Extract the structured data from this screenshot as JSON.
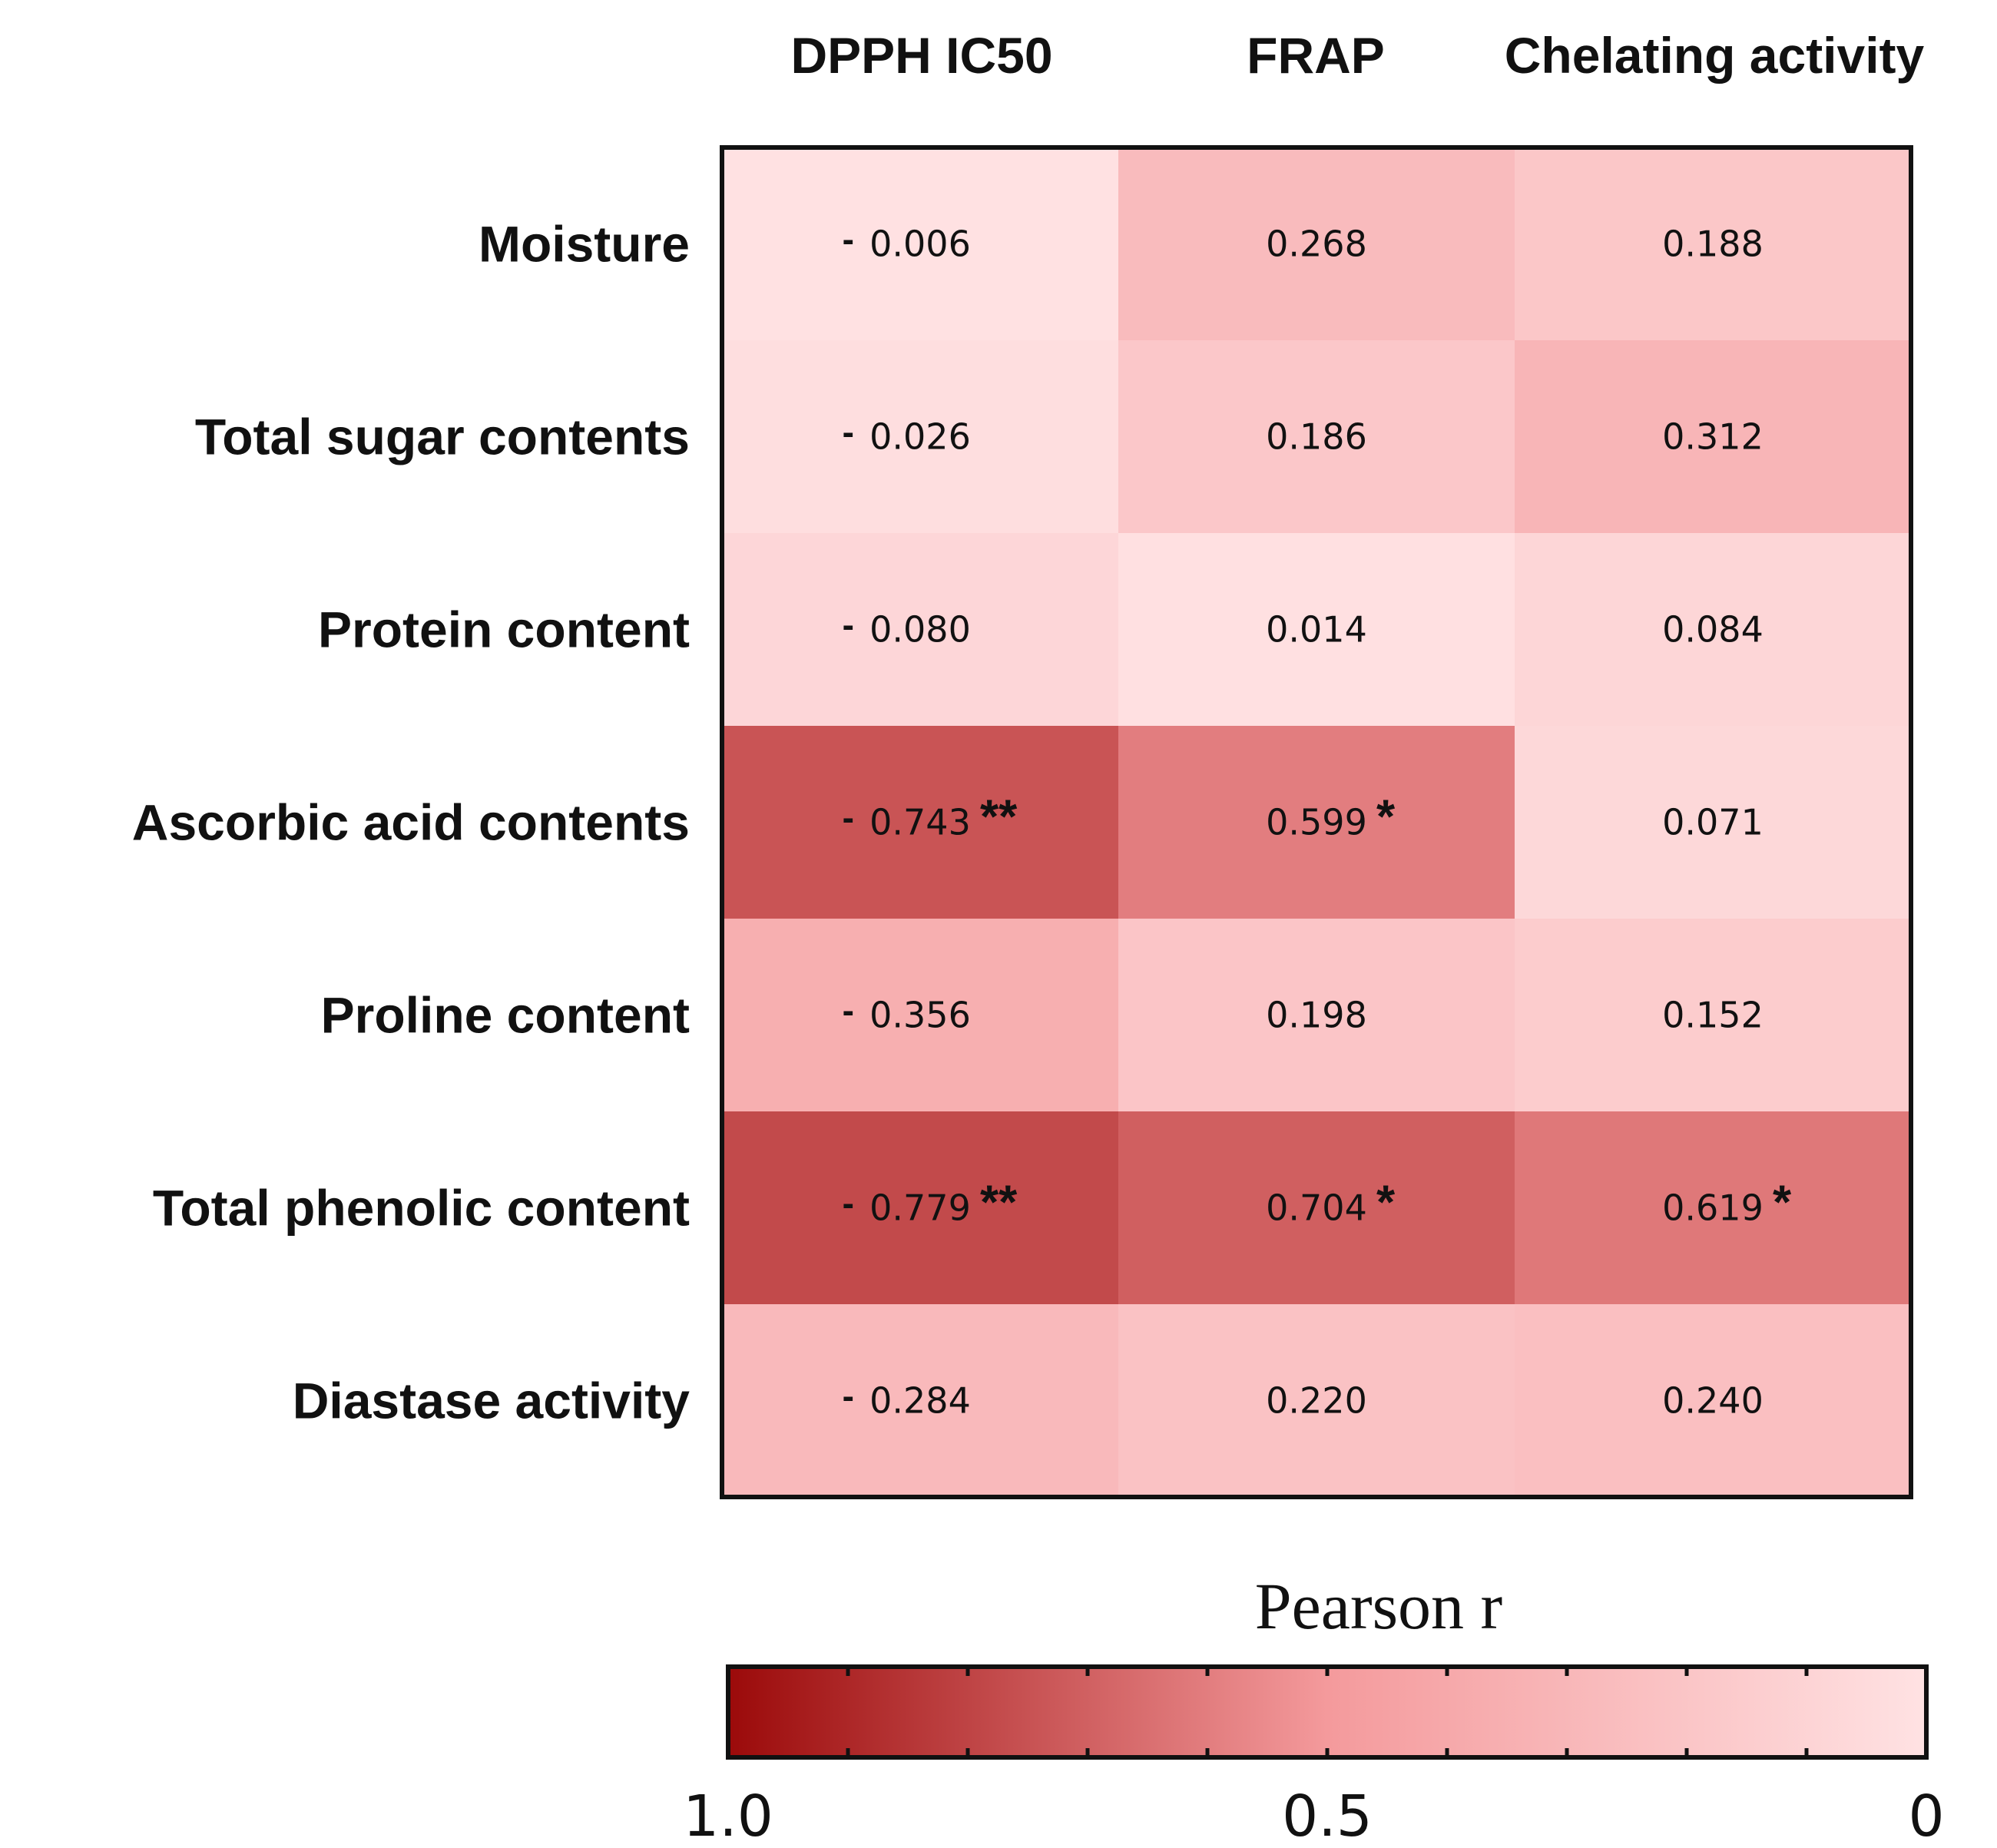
{
  "chart_data": {
    "type": "heatmap",
    "title": "",
    "columns": [
      "DPPH IC50",
      "FRAP",
      "Chelating activity"
    ],
    "rows": [
      "Moisture",
      "Total sugar contents",
      "Protein content",
      "Ascorbic acid contents",
      "Proline content",
      "Total phenolic content",
      "Diastase activity"
    ],
    "values": [
      [
        -0.006,
        0.268,
        0.188
      ],
      [
        -0.026,
        0.186,
        0.312
      ],
      [
        -0.08,
        0.014,
        0.084
      ],
      [
        -0.743,
        0.599,
        0.071
      ],
      [
        -0.356,
        0.198,
        0.152
      ],
      [
        -0.779,
        0.704,
        0.619
      ],
      [
        -0.284,
        0.22,
        0.24
      ]
    ],
    "cell_labels": [
      [
        {
          "sign": "-",
          "text": "0.006",
          "sig": ""
        },
        {
          "sign": "",
          "text": "0.268",
          "sig": ""
        },
        {
          "sign": "",
          "text": "0.188",
          "sig": ""
        }
      ],
      [
        {
          "sign": "-",
          "text": "0.026",
          "sig": ""
        },
        {
          "sign": "",
          "text": "0.186",
          "sig": ""
        },
        {
          "sign": "",
          "text": "0.312",
          "sig": ""
        }
      ],
      [
        {
          "sign": "-",
          "text": "0.080",
          "sig": ""
        },
        {
          "sign": "",
          "text": "0.014",
          "sig": ""
        },
        {
          "sign": "",
          "text": "0.084",
          "sig": ""
        }
      ],
      [
        {
          "sign": "-",
          "text": "0.743",
          "sig": "**"
        },
        {
          "sign": "",
          "text": "0.599",
          "sig": "*"
        },
        {
          "sign": "",
          "text": "0.071",
          "sig": ""
        }
      ],
      [
        {
          "sign": "-",
          "text": "0.356",
          "sig": ""
        },
        {
          "sign": "",
          "text": "0.198",
          "sig": ""
        },
        {
          "sign": "",
          "text": "0.152",
          "sig": ""
        }
      ],
      [
        {
          "sign": "-",
          "text": "0.779",
          "sig": "**"
        },
        {
          "sign": "",
          "text": "0.704",
          "sig": "*"
        },
        {
          "sign": "",
          "text": "0.619",
          "sig": "*"
        }
      ],
      [
        {
          "sign": "-",
          "text": "0.284",
          "sig": ""
        },
        {
          "sign": "",
          "text": "0.220",
          "sig": ""
        },
        {
          "sign": "",
          "text": "0.240",
          "sig": ""
        }
      ]
    ],
    "colorbar": {
      "title": "Pearson r",
      "range": [
        1.0,
        0
      ],
      "tick_labels": [
        {
          "value": 1.0,
          "label": "1.0"
        },
        {
          "value": 0.5,
          "label": "0.5"
        },
        {
          "value": 0,
          "label": "0"
        }
      ],
      "minor_tick_count": 10,
      "color_high": "#9b0a0a",
      "color_mid": "#f49a9c",
      "color_low": "#ffe2e3"
    },
    "colors": {
      "border": "#111111",
      "text": "#111111"
    }
  }
}
